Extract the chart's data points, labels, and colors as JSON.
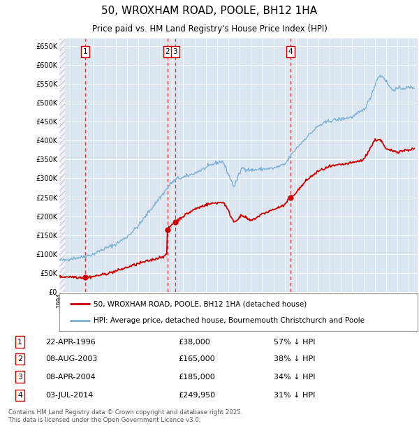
{
  "title": "50, WROXHAM ROAD, POOLE, BH12 1HA",
  "subtitle": "Price paid vs. HM Land Registry's House Price Index (HPI)",
  "background_color": "#ffffff",
  "plot_bg_color": "#dce6f1",
  "grid_color": "#ffffff",
  "sale_labels": [
    "1",
    "2",
    "3",
    "4"
  ],
  "legend_red": "50, WROXHAM ROAD, POOLE, BH12 1HA (detached house)",
  "legend_blue": "HPI: Average price, detached house, Bournemouth Christchurch and Poole",
  "table_data": [
    [
      "1",
      "22-APR-1996",
      "£38,000",
      "57% ↓ HPI"
    ],
    [
      "2",
      "08-AUG-2003",
      "£165,000",
      "38% ↓ HPI"
    ],
    [
      "3",
      "08-APR-2004",
      "£185,000",
      "34% ↓ HPI"
    ],
    [
      "4",
      "03-JUL-2014",
      "£249,950",
      "31% ↓ HPI"
    ]
  ],
  "footer": "Contains HM Land Registry data © Crown copyright and database right 2025.\nThis data is licensed under the Open Government Licence v3.0.",
  "ylim": [
    0,
    670000
  ],
  "ytick_step": 50000,
  "red_color": "#cc0000",
  "blue_color": "#7ab0d4",
  "vline_color": "#dd3333",
  "marker_color": "#cc0000",
  "annotation_box_edge": "#cc0000",
  "sale_year_nums": [
    1996.31,
    2003.6,
    2004.27,
    2014.5
  ],
  "sale_price_vals": [
    38000,
    165000,
    185000,
    249950
  ]
}
